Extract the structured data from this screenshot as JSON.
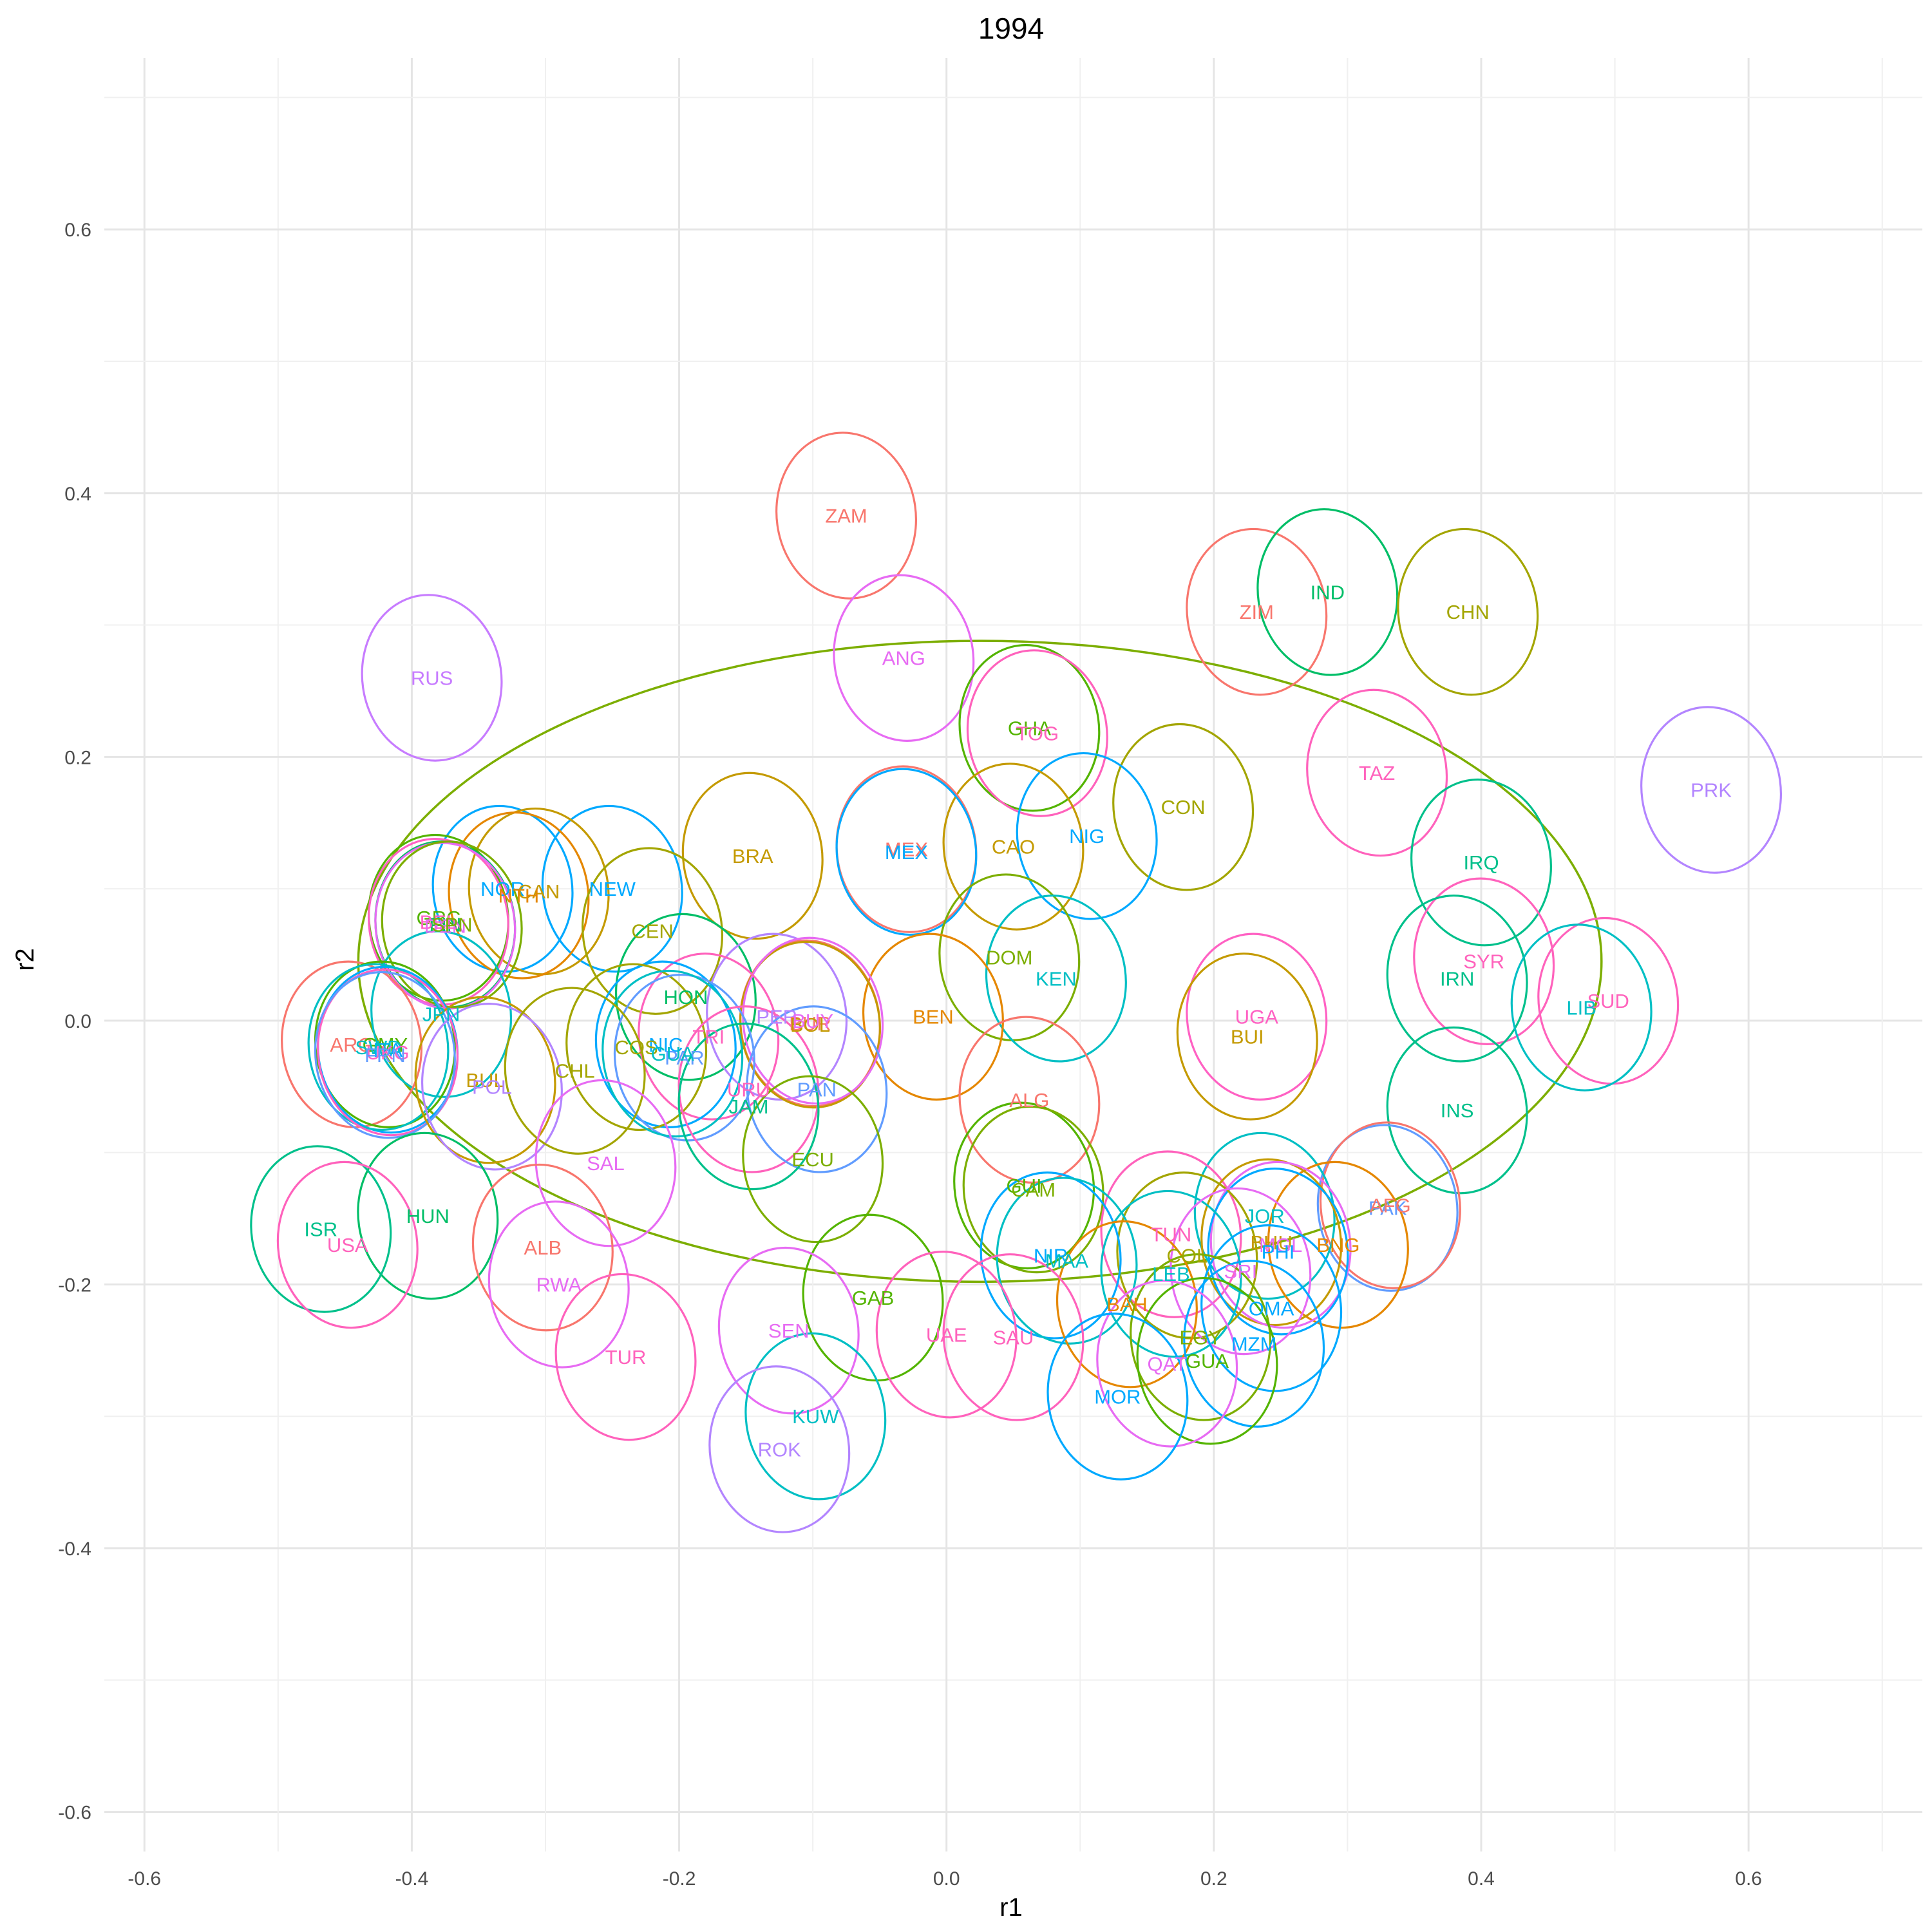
{
  "chart_data": {
    "type": "scatter",
    "title": "1994",
    "xlabel": "r1",
    "ylabel": "r2",
    "xlim": [
      -0.63,
      0.73
    ],
    "ylim": [
      -0.63,
      0.73
    ],
    "x_ticks": [
      -0.6,
      -0.4,
      -0.2,
      0.0,
      0.2,
      0.4,
      0.6
    ],
    "y_ticks": [
      -0.6,
      -0.4,
      -0.2,
      0.0,
      0.2,
      0.4,
      0.6
    ],
    "x_tick_labels": [
      "-0.6",
      "-0.4",
      "-0.2",
      "0.0",
      "0.2",
      "0.4",
      "0.6"
    ],
    "y_tick_labels": [
      "-0.6",
      "-0.4",
      "-0.2",
      "0.0",
      "0.2",
      "0.4",
      "0.6"
    ],
    "grid": true,
    "legend": "none",
    "overall_ellipse": {
      "cx": 0.025,
      "cy": 0.045,
      "rx": 0.465,
      "ry": 0.243,
      "color": "#7CAE00"
    },
    "points": [
      {
        "label": "ZAM",
        "x": -0.075,
        "y": 0.383,
        "color": "#F8766D"
      },
      {
        "label": "ZIM",
        "x": 0.232,
        "y": 0.31,
        "color": "#F8766D"
      },
      {
        "label": "IND",
        "x": 0.285,
        "y": 0.325,
        "color": "#00BE67"
      },
      {
        "label": "CHN",
        "x": 0.39,
        "y": 0.31,
        "color": "#A3A500"
      },
      {
        "label": "RUS",
        "x": -0.385,
        "y": 0.26,
        "color": "#C77CFF"
      },
      {
        "label": "ANG",
        "x": -0.032,
        "y": 0.275,
        "color": "#E76BF3"
      },
      {
        "label": "GHA",
        "x": 0.062,
        "y": 0.222,
        "color": "#53B400"
      },
      {
        "label": "TOG",
        "x": 0.068,
        "y": 0.218,
        "color": "#FF62BC"
      },
      {
        "label": "TAZ",
        "x": 0.322,
        "y": 0.188,
        "color": "#FF62BC"
      },
      {
        "label": "PRK",
        "x": 0.572,
        "y": 0.175,
        "color": "#B385FF"
      },
      {
        "label": "CON",
        "x": 0.177,
        "y": 0.162,
        "color": "#A3A500"
      },
      {
        "label": "NIG",
        "x": 0.105,
        "y": 0.14,
        "color": "#00A9FF"
      },
      {
        "label": "CAO",
        "x": 0.05,
        "y": 0.132,
        "color": "#C49A00"
      },
      {
        "label": "MEX",
        "x": -0.03,
        "y": 0.13,
        "color": "#F8766D"
      },
      {
        "label": "MEX",
        "x": -0.03,
        "y": 0.128,
        "color": "#00A9FF"
      },
      {
        "label": "BRA",
        "x": -0.145,
        "y": 0.125,
        "color": "#C49A00"
      },
      {
        "label": "IRQ",
        "x": 0.4,
        "y": 0.12,
        "color": "#00C08B"
      },
      {
        "label": "NEW",
        "x": -0.25,
        "y": 0.1,
        "color": "#00A9FF"
      },
      {
        "label": "NOR",
        "x": -0.332,
        "y": 0.1,
        "color": "#00A9FF"
      },
      {
        "label": "CAN",
        "x": -0.305,
        "y": 0.098,
        "color": "#C49A00"
      },
      {
        "label": "NTH",
        "x": -0.32,
        "y": 0.095,
        "color": "#E58700"
      },
      {
        "label": "GRC",
        "x": -0.38,
        "y": 0.078,
        "color": "#53B400"
      },
      {
        "label": "FIN",
        "x": -0.375,
        "y": 0.073,
        "color": "#00BE67"
      },
      {
        "label": "BEL",
        "x": -0.38,
        "y": 0.075,
        "color": "#FF61C3"
      },
      {
        "label": "DEN",
        "x": -0.375,
        "y": 0.072,
        "color": "#E76BF3"
      },
      {
        "label": "SPN",
        "x": -0.37,
        "y": 0.073,
        "color": "#7CAE00"
      },
      {
        "label": "CEN",
        "x": -0.22,
        "y": 0.068,
        "color": "#A3A500"
      },
      {
        "label": "DOM",
        "x": 0.047,
        "y": 0.048,
        "color": "#7CAE00"
      },
      {
        "label": "SYR",
        "x": 0.402,
        "y": 0.045,
        "color": "#FF62BC"
      },
      {
        "label": "KEN",
        "x": 0.082,
        "y": 0.032,
        "color": "#00BFC4"
      },
      {
        "label": "IRN",
        "x": 0.382,
        "y": 0.032,
        "color": "#00C08B"
      },
      {
        "label": "HON",
        "x": -0.195,
        "y": 0.018,
        "color": "#00BE67"
      },
      {
        "label": "SUD",
        "x": 0.495,
        "y": 0.015,
        "color": "#FF62BC"
      },
      {
        "label": "LIB",
        "x": 0.475,
        "y": 0.01,
        "color": "#00BFC4"
      },
      {
        "label": "JPN",
        "x": -0.378,
        "y": 0.005,
        "color": "#00BFC4"
      },
      {
        "label": "BEN",
        "x": -0.01,
        "y": 0.003,
        "color": "#E58700"
      },
      {
        "label": "UGA",
        "x": 0.232,
        "y": 0.003,
        "color": "#FF61C3"
      },
      {
        "label": "PER",
        "x": -0.127,
        "y": 0.003,
        "color": "#B385FF"
      },
      {
        "label": "BUR",
        "x": -0.102,
        "y": -0.002,
        "color": "#F8766D"
      },
      {
        "label": "BOL",
        "x": -0.102,
        "y": -0.003,
        "color": "#C49A00"
      },
      {
        "label": "BUY",
        "x": -0.1,
        "y": 0.0,
        "color": "#E76BF3"
      },
      {
        "label": "TRI",
        "x": -0.178,
        "y": -0.012,
        "color": "#FF62BC"
      },
      {
        "label": "BUI",
        "x": 0.225,
        "y": -0.012,
        "color": "#C49A00"
      },
      {
        "label": "ARG",
        "x": -0.445,
        "y": -0.018,
        "color": "#F8766D"
      },
      {
        "label": "GMY",
        "x": -0.42,
        "y": -0.018,
        "color": "#53B400"
      },
      {
        "label": "ITA",
        "x": -0.418,
        "y": -0.022,
        "color": "#00A9FF"
      },
      {
        "label": "SWD",
        "x": -0.425,
        "y": -0.02,
        "color": "#00BFC4"
      },
      {
        "label": "UKG",
        "x": -0.418,
        "y": -0.024,
        "color": "#FF61C3"
      },
      {
        "label": "FRN",
        "x": -0.42,
        "y": -0.026,
        "color": "#619CFF"
      },
      {
        "label": "NIC",
        "x": -0.21,
        "y": -0.018,
        "color": "#00A9FF"
      },
      {
        "label": "COS",
        "x": -0.232,
        "y": -0.02,
        "color": "#A3A500"
      },
      {
        "label": "PAR",
        "x": -0.196,
        "y": -0.028,
        "color": "#619CFF"
      },
      {
        "label": "GUA",
        "x": -0.205,
        "y": -0.025,
        "color": "#00BFC4"
      },
      {
        "label": "BUL",
        "x": -0.345,
        "y": -0.045,
        "color": "#C49A00"
      },
      {
        "label": "POL",
        "x": -0.34,
        "y": -0.05,
        "color": "#B385FF"
      },
      {
        "label": "CHL",
        "x": -0.278,
        "y": -0.038,
        "color": "#A3A500"
      },
      {
        "label": "URU",
        "x": -0.148,
        "y": -0.052,
        "color": "#FF62BC"
      },
      {
        "label": "PAN",
        "x": -0.097,
        "y": -0.052,
        "color": "#619CFF"
      },
      {
        "label": "JAM",
        "x": -0.148,
        "y": -0.065,
        "color": "#00C08B"
      },
      {
        "label": "ALG",
        "x": 0.062,
        "y": -0.06,
        "color": "#F8766D"
      },
      {
        "label": "INS",
        "x": 0.382,
        "y": -0.068,
        "color": "#00C08B"
      },
      {
        "label": "SAL",
        "x": -0.255,
        "y": -0.108,
        "color": "#E76BF3"
      },
      {
        "label": "ECU",
        "x": -0.1,
        "y": -0.105,
        "color": "#7CAE00"
      },
      {
        "label": "GUI",
        "x": 0.058,
        "y": -0.125,
        "color": "#53B400"
      },
      {
        "label": "CAM",
        "x": 0.065,
        "y": -0.128,
        "color": "#7CAE00"
      },
      {
        "label": "HUN",
        "x": -0.388,
        "y": -0.148,
        "color": "#00BE67"
      },
      {
        "label": "PAK",
        "x": 0.33,
        "y": -0.142,
        "color": "#619CFF"
      },
      {
        "label": "AFG",
        "x": 0.332,
        "y": -0.14,
        "color": "#F8766D"
      },
      {
        "label": "JOR",
        "x": 0.238,
        "y": -0.148,
        "color": "#00BFC4"
      },
      {
        "label": "ISR",
        "x": -0.468,
        "y": -0.158,
        "color": "#00C08B"
      },
      {
        "label": "USA",
        "x": -0.448,
        "y": -0.17,
        "color": "#FF62BC"
      },
      {
        "label": "ALB",
        "x": -0.302,
        "y": -0.172,
        "color": "#F8766D"
      },
      {
        "label": "TUN",
        "x": 0.168,
        "y": -0.162,
        "color": "#FF62BC"
      },
      {
        "label": "BNG",
        "x": 0.293,
        "y": -0.17,
        "color": "#E58700"
      },
      {
        "label": "BHU",
        "x": 0.243,
        "y": -0.168,
        "color": "#C49A00"
      },
      {
        "label": "MGL",
        "x": 0.25,
        "y": -0.17,
        "color": "#E76BF3"
      },
      {
        "label": "PHI",
        "x": 0.248,
        "y": -0.175,
        "color": "#00A9FF"
      },
      {
        "label": "COL",
        "x": 0.18,
        "y": -0.178,
        "color": "#A3A500"
      },
      {
        "label": "NIR",
        "x": 0.078,
        "y": -0.178,
        "color": "#00A9FF"
      },
      {
        "label": "MAA",
        "x": 0.09,
        "y": -0.182,
        "color": "#00BFC4"
      },
      {
        "label": "LEB",
        "x": 0.168,
        "y": -0.192,
        "color": "#00BFC4"
      },
      {
        "label": "SRI",
        "x": 0.22,
        "y": -0.19,
        "color": "#E76BF3"
      },
      {
        "label": "RWA",
        "x": -0.29,
        "y": -0.2,
        "color": "#E76BF3"
      },
      {
        "label": "GAB",
        "x": -0.055,
        "y": -0.21,
        "color": "#53B400"
      },
      {
        "label": "BAH",
        "x": 0.135,
        "y": -0.215,
        "color": "#E58700"
      },
      {
        "label": "OMA",
        "x": 0.243,
        "y": -0.218,
        "color": "#00A9FF"
      },
      {
        "label": "SEN",
        "x": -0.118,
        "y": -0.235,
        "color": "#E76BF3"
      },
      {
        "label": "UAE",
        "x": 0.0,
        "y": -0.238,
        "color": "#FF62BC"
      },
      {
        "label": "SAU",
        "x": 0.05,
        "y": -0.24,
        "color": "#FF62BC"
      },
      {
        "label": "EGY",
        "x": 0.19,
        "y": -0.24,
        "color": "#7CAE00"
      },
      {
        "label": "MZM",
        "x": 0.23,
        "y": -0.245,
        "color": "#00A9FF"
      },
      {
        "label": "TUR",
        "x": -0.24,
        "y": -0.255,
        "color": "#FF62BC"
      },
      {
        "label": "GUA",
        "x": 0.195,
        "y": -0.258,
        "color": "#53B400"
      },
      {
        "label": "QAT",
        "x": 0.165,
        "y": -0.26,
        "color": "#E76BF3"
      },
      {
        "label": "MOR",
        "x": 0.128,
        "y": -0.285,
        "color": "#00A9FF"
      },
      {
        "label": "KUW",
        "x": -0.098,
        "y": -0.3,
        "color": "#00BFC4"
      },
      {
        "label": "ROK",
        "x": -0.125,
        "y": -0.325,
        "color": "#B385FF"
      }
    ]
  }
}
